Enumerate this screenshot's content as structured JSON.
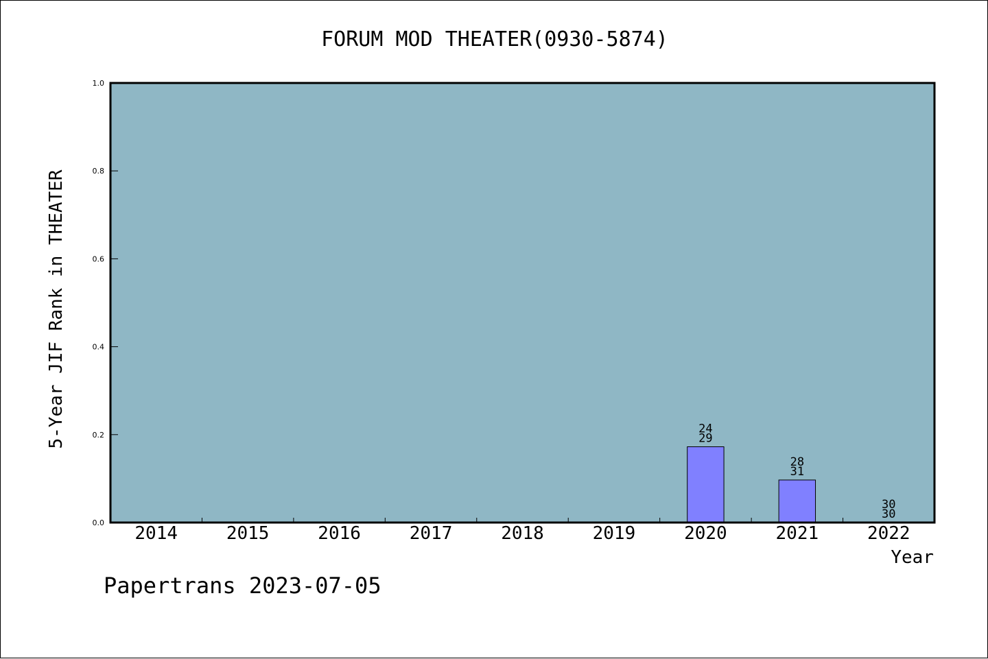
{
  "chart_data": {
    "type": "bar",
    "title": "FORUM MOD THEATER(0930-5874)",
    "xlabel": "Year",
    "ylabel": "5-Year JIF Rank in THEATER",
    "ylim": [
      0,
      1.0
    ],
    "yticks": [
      "0.0",
      "0.2",
      "0.4",
      "0.6",
      "0.8",
      "1.0"
    ],
    "categories": [
      "2014",
      "2015",
      "2016",
      "2017",
      "2018",
      "2019",
      "2020",
      "2021",
      "2022"
    ],
    "values": [
      null,
      null,
      null,
      null,
      null,
      null,
      0.1724,
      0.0968,
      0.0
    ],
    "ranks": [
      "",
      "",
      "",
      "",
      "",
      "",
      "24",
      "28",
      "30"
    ],
    "totals": [
      "",
      "",
      "",
      "",
      "",
      "",
      "29",
      "31",
      "30"
    ],
    "grid": false,
    "plot_background": "#8fb7c5",
    "bar_color": "#8080ff"
  },
  "footer": {
    "text": "Papertrans 2023-07-05"
  }
}
